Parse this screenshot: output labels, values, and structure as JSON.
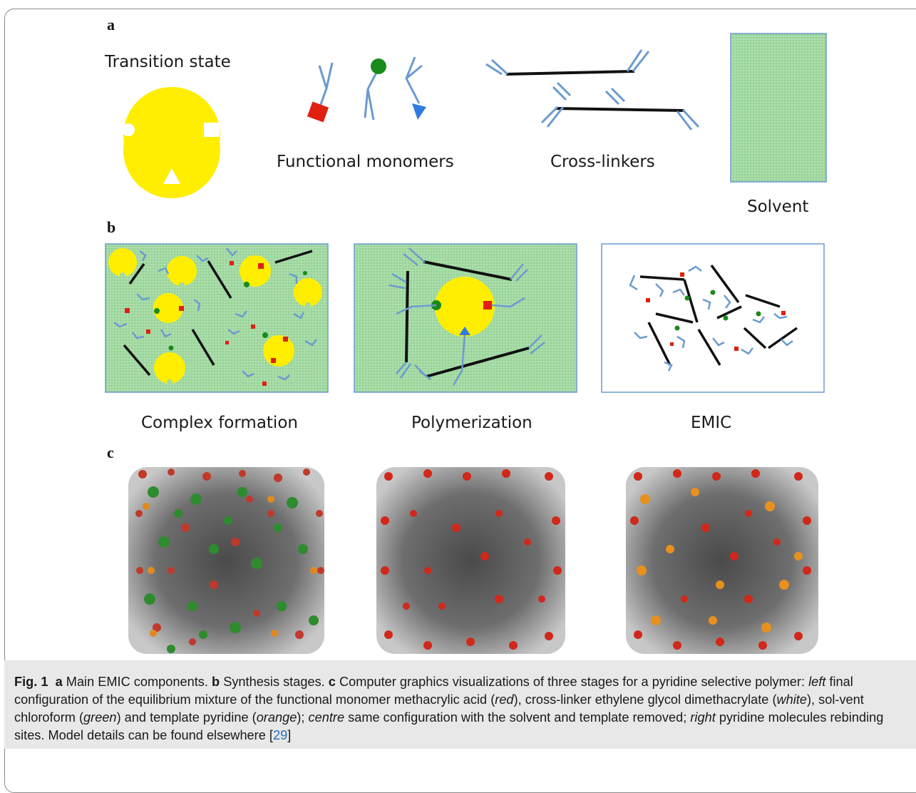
{
  "panels": {
    "a": {
      "letter": "a",
      "labels": {
        "transition_state": "Transition state",
        "functional_monomers": "Functional monomers",
        "cross_linkers": "Cross-linkers",
        "solvent": "Solvent"
      }
    },
    "b": {
      "letter": "b",
      "labels": {
        "complex_formation": "Complex formation",
        "polymerization": "Polymerization",
        "emic": "EMIC"
      }
    },
    "c": {
      "letter": "c"
    }
  },
  "caption": {
    "fig_label": "Fig. 1",
    "a_letter": "a",
    "a_text": "Main EMIC components.",
    "b_letter": "b",
    "b_text": "Synthesis stages.",
    "c_letter": "c",
    "c_text1": "Computer graphics visualizations of three stages for a pyridine selective polymer:",
    "left": "left",
    "text2": "final configuration of the equilibrium mixture of the functional monomer methacrylic acid (",
    "red": "red",
    "text3": "), cross-linker ethylene glycol dimethacrylate (",
    "white": "white",
    "text4": "), sol-vent chloroform (",
    "green": "green",
    "text5": ") and template pyridine (",
    "orange": "orange",
    "text6": ");",
    "centre": "centre",
    "text7": "same configuration with the solvent and template removed;",
    "right": "right",
    "text8": "pyridine molecules rebinding sites. Model details can be found elsewhere [",
    "ref": "29",
    "text9": "]"
  },
  "colors": {
    "yellow": "#ffee00",
    "green_solvent": "#9fd79f",
    "monomer_blue": "#6b9bd1",
    "red": "#e02010",
    "dark_green": "#1a8a1a",
    "blue_triangle": "#2f7de0"
  }
}
